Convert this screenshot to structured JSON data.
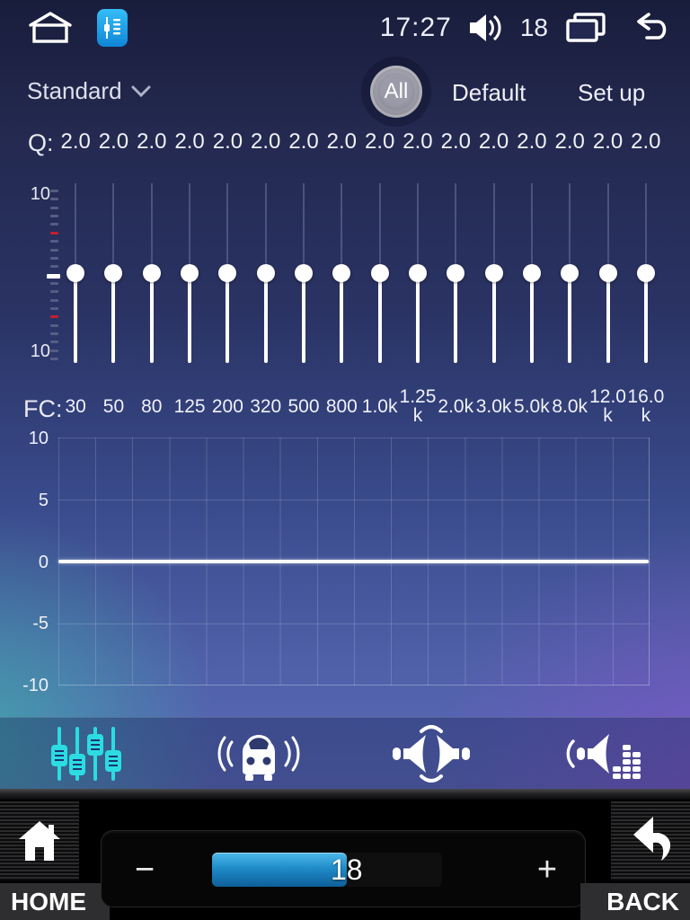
{
  "status_bar": {
    "time": "17:27",
    "volume": "18"
  },
  "preset_bar": {
    "preset": "Standard",
    "all": "All",
    "default": "Default",
    "setup": "Set up"
  },
  "equalizer": {
    "q_label": "Q:",
    "fc_label": "FC:",
    "scale_top": "10",
    "scale_bottom": "10",
    "gain_db_all_bands": 0,
    "bands": [
      {
        "f1": "30",
        "f2": "",
        "q": "2.0"
      },
      {
        "f1": "50",
        "f2": "",
        "q": "2.0"
      },
      {
        "f1": "80",
        "f2": "",
        "q": "2.0"
      },
      {
        "f1": "125",
        "f2": "",
        "q": "2.0"
      },
      {
        "f1": "200",
        "f2": "",
        "q": "2.0"
      },
      {
        "f1": "320",
        "f2": "",
        "q": "2.0"
      },
      {
        "f1": "500",
        "f2": "",
        "q": "2.0"
      },
      {
        "f1": "800",
        "f2": "",
        "q": "2.0"
      },
      {
        "f1": "1.0k",
        "f2": "",
        "q": "2.0"
      },
      {
        "f1": "1.25",
        "f2": "k",
        "q": "2.0"
      },
      {
        "f1": "2.0k",
        "f2": "",
        "q": "2.0"
      },
      {
        "f1": "3.0k",
        "f2": "",
        "q": "2.0"
      },
      {
        "f1": "5.0k",
        "f2": "",
        "q": "2.0"
      },
      {
        "f1": "8.0k",
        "f2": "",
        "q": "2.0"
      },
      {
        "f1": "12.0",
        "f2": "k",
        "q": "2.0"
      },
      {
        "f1": "16.0",
        "f2": "k",
        "q": "2.0"
      }
    ]
  },
  "graph": {
    "y_ticks": [
      "10",
      "5",
      "0",
      "-5",
      "-10"
    ],
    "y_range": [
      -10,
      10
    ],
    "curve": "flat line at 0 dB across all bands"
  },
  "toolbar": {
    "tabs": [
      {
        "name": "equalizer",
        "active": true
      },
      {
        "name": "car-sound",
        "active": false
      },
      {
        "name": "sound-field",
        "active": false
      },
      {
        "name": "loudness",
        "active": false
      }
    ]
  },
  "bottom_bar": {
    "home": "HOME",
    "back": "BACK",
    "minus": "−",
    "plus": "+",
    "volume": "18"
  },
  "colors": {
    "accent_cyan": "#2bdce2",
    "volume_fill_blue": "#1f8cc9",
    "tick_red": "#c1202e",
    "app_icon_blue": "#1aa7ef",
    "slider_white": "#ffffff"
  }
}
